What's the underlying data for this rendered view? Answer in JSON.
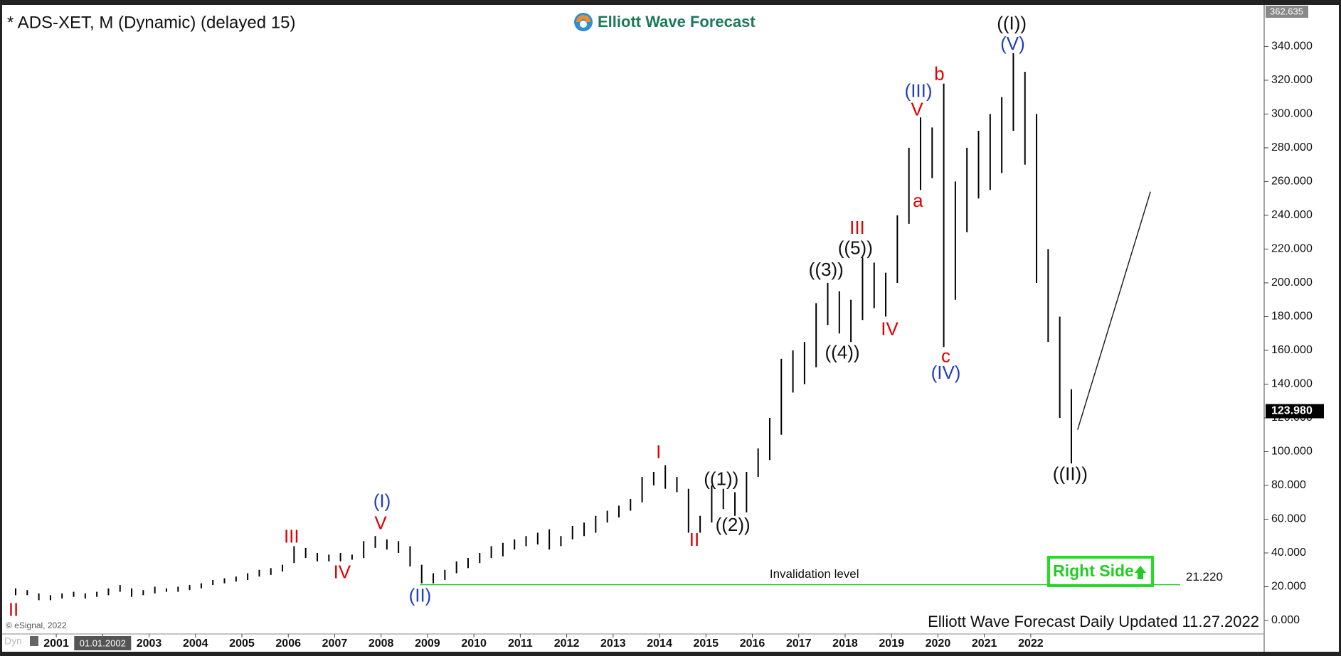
{
  "chart_data": {
    "type": "range",
    "title": "* ADS-XET, M (Dynamic) (delayed 15)",
    "logo": "Elliott Wave Forecast",
    "footer": "Elliott Wave Forecast Daily Updated 11.27.2022",
    "copyright": "© eSignal, 2022",
    "badge": "Dyn",
    "button": "Right Side",
    "color": "#000000",
    "x": [
      2000.125,
      2000.375,
      2000.625,
      2000.875,
      2001.125,
      2001.375,
      2001.625,
      2001.875,
      2002.125,
      2002.375,
      2002.625,
      2002.875,
      2003.125,
      2003.375,
      2003.625,
      2003.875,
      2004.125,
      2004.375,
      2004.625,
      2004.875,
      2005.125,
      2005.375,
      2005.625,
      2005.875,
      2006.125,
      2006.375,
      2006.625,
      2006.875,
      2007.125,
      2007.375,
      2007.625,
      2007.875,
      2008.125,
      2008.375,
      2008.625,
      2008.875,
      2009.125,
      2009.375,
      2009.625,
      2009.875,
      2010.125,
      2010.375,
      2010.625,
      2010.875,
      2011.125,
      2011.375,
      2011.625,
      2011.875,
      2012.125,
      2012.375,
      2012.625,
      2012.875,
      2013.125,
      2013.375,
      2013.625,
      2013.875,
      2014.125,
      2014.375,
      2014.625,
      2014.875,
      2015.125,
      2015.375,
      2015.625,
      2015.875,
      2016.125,
      2016.375,
      2016.625,
      2016.875,
      2017.125,
      2017.375,
      2017.625,
      2017.875,
      2018.125,
      2018.375,
      2018.625,
      2018.875,
      2019.125,
      2019.375,
      2019.625,
      2019.875,
      2020.125,
      2020.375,
      2020.625,
      2020.875,
      2021.125,
      2021.375,
      2021.625,
      2021.875,
      2022.125,
      2022.375,
      2022.625,
      2022.875
    ],
    "high": [
      19,
      18,
      16,
      15,
      16,
      17,
      16,
      17,
      19,
      21,
      19,
      18,
      20,
      19,
      20,
      21,
      22,
      24,
      25,
      26,
      28,
      30,
      31,
      33,
      44,
      43,
      40,
      39,
      40,
      39,
      47,
      50,
      48,
      47,
      44,
      33,
      28,
      30,
      35,
      37,
      40,
      44,
      46,
      48,
      50,
      52,
      54,
      50,
      56,
      58,
      62,
      65,
      68,
      72,
      85,
      88,
      92,
      85,
      78,
      62,
      80,
      78,
      76,
      88,
      102,
      120,
      155,
      160,
      165,
      188,
      200,
      195,
      190,
      215,
      212,
      206,
      240,
      280,
      298,
      292,
      318,
      260,
      280,
      290,
      300,
      310,
      336,
      325,
      300,
      220,
      180,
      137
    ],
    "low": [
      15,
      15,
      12,
      12,
      13,
      14,
      13,
      14,
      15,
      17,
      14,
      15,
      16,
      17,
      17,
      18,
      19,
      21,
      22,
      23,
      24,
      26,
      27,
      29,
      34,
      37,
      35,
      35,
      35,
      36,
      37,
      43,
      42,
      40,
      32,
      22,
      22,
      24,
      28,
      31,
      34,
      37,
      38,
      42,
      44,
      45,
      42,
      44,
      48,
      50,
      52,
      58,
      61,
      65,
      70,
      80,
      78,
      76,
      52,
      52,
      58,
      66,
      62,
      64,
      85,
      95,
      110,
      135,
      140,
      150,
      175,
      170,
      165,
      178,
      185,
      180,
      200,
      235,
      255,
      262,
      162,
      190,
      230,
      250,
      255,
      265,
      290,
      270,
      200,
      165,
      120,
      93
    ],
    "xlim": [
      1999.88,
      2027.03
    ],
    "ylim": [
      -8,
      363.5
    ],
    "xticks": [
      2001,
      {
        "value": 2002,
        "label": "01.01.2002"
      },
      2003,
      2004,
      2005,
      2006,
      2007,
      2008,
      2009,
      2010,
      2011,
      2012,
      2013,
      2014,
      2015,
      2016,
      2017,
      2018,
      2019,
      2020,
      2021,
      2022
    ],
    "yticks": [
      {
        "value": 0,
        "label": "0.000"
      },
      {
        "value": 20,
        "label": "20.000"
      },
      {
        "value": 40,
        "label": "40.000"
      },
      {
        "value": 60,
        "label": "60.000"
      },
      {
        "value": 80,
        "label": "80.000"
      },
      {
        "value": 100,
        "label": "100.000"
      },
      {
        "value": 120,
        "label": "120.000"
      },
      {
        "value": 140,
        "label": "140.000"
      },
      {
        "value": 160,
        "label": "160.000"
      },
      {
        "value": 180,
        "label": "180.000"
      },
      {
        "value": 200,
        "label": "200.000"
      },
      {
        "value": 220,
        "label": "220.000"
      },
      {
        "value": 240,
        "label": "240.000"
      },
      {
        "value": 260,
        "label": "260.000"
      },
      {
        "value": 280,
        "label": "280.000"
      },
      {
        "value": 300,
        "label": "300.000"
      },
      {
        "value": 320,
        "label": "320.000"
      },
      {
        "value": 340,
        "label": "340.000"
      }
    ],
    "top_value": {
      "value": 362.635,
      "label": "362.635"
    },
    "last_price": {
      "value": 123.98,
      "label": "123.980"
    },
    "invalidation": {
      "label": "Invalidation level",
      "value": 21.22,
      "value_label": "21.220",
      "x": [
        2008.84,
        2025.22
      ],
      "color": "#33cc33"
    },
    "projection": {
      "x": [
        2023.01,
        2024.58
      ],
      "y": [
        113,
        254
      ]
    },
    "annotations": [
      {
        "text": "II",
        "color": "#e00000",
        "x": 2000.08,
        "y": 5.6
      },
      {
        "text": "III",
        "color": "#e00000",
        "x": 2006.07,
        "y": 49
      },
      {
        "text": "IV",
        "color": "#e00000",
        "x": 2007.16,
        "y": 28
      },
      {
        "text": "V",
        "color": "#e00000",
        "x": 2007.99,
        "y": 57
      },
      {
        "text": "(I)",
        "color": "#1f3fbf",
        "x": 2008.02,
        "y": 70
      },
      {
        "text": "(II)",
        "color": "#1f3fbf",
        "x": 2008.84,
        "y": 14
      },
      {
        "text": "I",
        "color": "#e00000",
        "x": 2013.98,
        "y": 99
      },
      {
        "text": "II",
        "color": "#e00000",
        "x": 2014.75,
        "y": 47
      },
      {
        "text": "((1))",
        "color": "#111111",
        "x": 2015.33,
        "y": 83
      },
      {
        "text": "((2))",
        "color": "#111111",
        "x": 2015.58,
        "y": 56
      },
      {
        "text": "((3))",
        "color": "#111111",
        "x": 2017.59,
        "y": 207
      },
      {
        "text": "((4))",
        "color": "#111111",
        "x": 2017.94,
        "y": 158
      },
      {
        "text": "III",
        "color": "#e00000",
        "x": 2018.26,
        "y": 232
      },
      {
        "text": "((5))",
        "color": "#111111",
        "x": 2018.22,
        "y": 220
      },
      {
        "text": "IV",
        "color": "#e00000",
        "x": 2018.96,
        "y": 172
      },
      {
        "text": "(III)",
        "color": "#1f3fbf",
        "x": 2019.58,
        "y": 313
      },
      {
        "text": "V",
        "color": "#e00000",
        "x": 2019.55,
        "y": 302
      },
      {
        "text": "a",
        "color": "#e00000",
        "x": 2019.57,
        "y": 248
      },
      {
        "text": "b",
        "color": "#e00000",
        "x": 2020.03,
        "y": 323
      },
      {
        "text": "c",
        "color": "#e00000",
        "x": 2020.17,
        "y": 156
      },
      {
        "text": "(IV)",
        "color": "#1f3fbf",
        "x": 2020.17,
        "y": 146
      },
      {
        "text": "((I))",
        "color": "#111111",
        "x": 2021.59,
        "y": 353
      },
      {
        "text": "(V)",
        "color": "#1f3fbf",
        "x": 2021.61,
        "y": 341
      },
      {
        "text": "((II))",
        "color": "#111111",
        "x": 2022.85,
        "y": 86
      }
    ]
  }
}
